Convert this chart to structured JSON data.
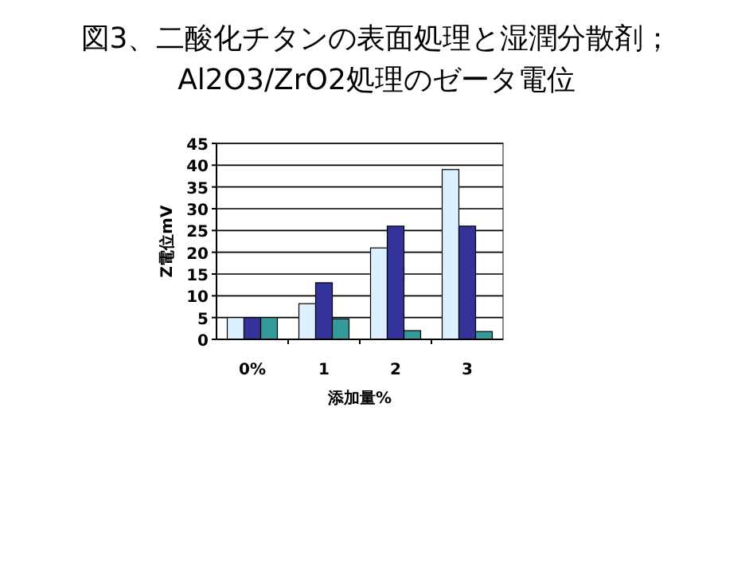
{
  "chart_data": {
    "type": "bar",
    "title": "図3、二酸化チタンの表面処理と湿潤分散剤；",
    "subtitle": "Al2O3/ZrO2処理のゼータ電位",
    "xlabel": "添加量%",
    "ylabel": "Z電位mV",
    "categories": [
      "0%",
      "1",
      "2",
      "3"
    ],
    "series": [
      {
        "color": "#ddf0ff",
        "values": [
          5,
          8.2,
          21,
          39
        ]
      },
      {
        "color": "#333399",
        "values": [
          5,
          13,
          26,
          26
        ]
      },
      {
        "color": "#339999",
        "values": [
          5,
          4.7,
          2,
          1.8
        ]
      }
    ],
    "ylim": [
      0,
      45
    ],
    "yticks": [
      0,
      5,
      10,
      15,
      20,
      25,
      30,
      35,
      40,
      45
    ],
    "grid": "y"
  }
}
